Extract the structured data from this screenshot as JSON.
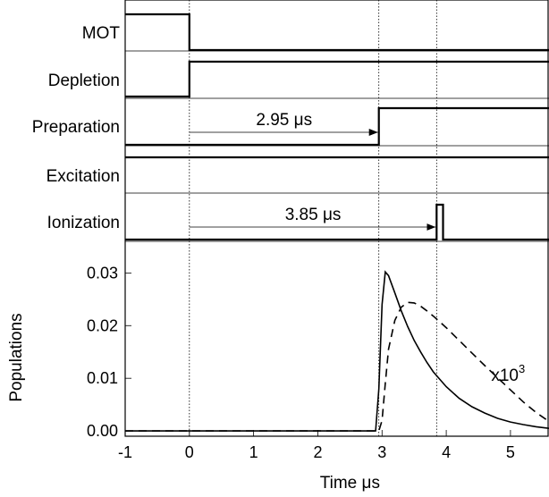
{
  "chart_data": [
    {
      "type": "line",
      "title": "",
      "description_of_panels": "",
      "x_range": [
        -1,
        5.6
      ],
      "channels": [
        {
          "name": "MOT",
          "points": [
            [
              -1,
              1
            ],
            [
              0,
              1
            ],
            [
              0,
              0
            ],
            [
              5.6,
              0
            ]
          ]
        },
        {
          "name": "Depletion",
          "points": [
            [
              -1,
              0
            ],
            [
              0,
              0
            ],
            [
              0,
              1
            ],
            [
              5.6,
              1
            ]
          ]
        },
        {
          "name": "Preparation",
          "points": [
            [
              -1,
              0
            ],
            [
              2.95,
              0
            ],
            [
              2.95,
              1
            ],
            [
              5.6,
              1
            ]
          ]
        },
        {
          "name": "Excitation",
          "points": [
            [
              -1,
              1
            ],
            [
              5.6,
              1
            ]
          ]
        },
        {
          "name": "Ionization",
          "points": [
            [
              -1,
              0
            ],
            [
              3.85,
              0
            ],
            [
              3.85,
              1
            ],
            [
              3.95,
              1
            ],
            [
              3.95,
              0
            ],
            [
              5.6,
              0
            ]
          ]
        }
      ],
      "annotations": [
        {
          "text_main": "2.95 ",
          "text_unit": "μs",
          "from": 0,
          "to": 2.95,
          "channel": "Preparation"
        },
        {
          "text_main": "3.85 ",
          "text_unit": "μs",
          "from": 0,
          "to": 3.85,
          "channel": "Ionization"
        }
      ]
    },
    {
      "type": "line",
      "xlabel_main": "Time ",
      "xlabel_unit": "μs",
      "ylabel": "Populations",
      "xlim": [
        -1,
        5.6
      ],
      "ylim": [
        -0.001,
        0.036
      ],
      "xticks": [
        -1,
        0,
        1,
        2,
        3,
        4,
        5
      ],
      "yticks": [
        "0.00",
        "0.01",
        "0.02",
        "0.03"
      ],
      "ytick_values": [
        0,
        0.01,
        0.02,
        0.03
      ],
      "series": [
        {
          "style": "solid",
          "x": [
            -1,
            2.9,
            2.95,
            3.0,
            3.05,
            3.1,
            3.2,
            3.3,
            3.4,
            3.5,
            3.6,
            3.7,
            3.8,
            3.9,
            4.0,
            4.2,
            4.4,
            4.6,
            4.8,
            5.0,
            5.2,
            5.4,
            5.6
          ],
          "y": [
            0,
            0,
            0.008,
            0.024,
            0.0302,
            0.0295,
            0.0262,
            0.0228,
            0.0198,
            0.0172,
            0.015,
            0.013,
            0.0112,
            0.0098,
            0.0084,
            0.0062,
            0.0046,
            0.0034,
            0.0024,
            0.0017,
            0.0012,
            0.0008,
            0.0005
          ]
        },
        {
          "style": "dashed",
          "x": [
            -1,
            2.95,
            3.0,
            3.05,
            3.1,
            3.2,
            3.3,
            3.4,
            3.5,
            3.6,
            3.7,
            3.8,
            3.9,
            4.0,
            4.2,
            4.4,
            4.6,
            4.8,
            5.0,
            5.2,
            5.4,
            5.6
          ],
          "y": [
            0,
            0,
            0.002,
            0.009,
            0.0155,
            0.021,
            0.0235,
            0.0244,
            0.0243,
            0.0237,
            0.0228,
            0.0218,
            0.0207,
            0.0196,
            0.0172,
            0.0148,
            0.0124,
            0.0101,
            0.0078,
            0.0055,
            0.0035,
            0.0018
          ]
        }
      ],
      "annotation": {
        "text_main": "x10",
        "text_sup": "3",
        "x": 4.7,
        "y": 0.0095
      }
    }
  ]
}
